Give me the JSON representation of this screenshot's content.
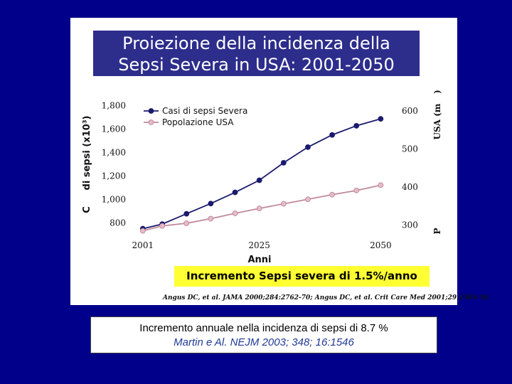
{
  "slide": {
    "title_line1": "Proiezione della incidenza della",
    "title_line2": "Sepsi Severa in USA: 2001-2050",
    "highlight": "Incremento Sepsi severa di 1.5%/anno",
    "citation": "Angus DC, et al. JAMA 2000;284:2762-70; Angus DC, et al. Crit Care Med 2001;29:1303-10.",
    "caption_line1": "Incremento annuale nella incidenza di sepsi di 8.7 %",
    "caption_line2": "Martin e Al. NEJM 2003; 348; 16:1546",
    "colors": {
      "background": "#00008b",
      "title_box": "#2d2d8c",
      "highlight": "#ffff33",
      "series_sepsi": "#1a1a6e",
      "series_pop": "#c08a9a"
    }
  },
  "chart_data": {
    "type": "line",
    "xlabel": "Anni",
    "ylabel_left": "di sepsi (x10³)",
    "ylabel_left_fragment": "C",
    "ylabel_right": "USA (m",
    "ylabel_right_fragment": ")",
    "ylabel_right_bottom_fragment": "P",
    "x_ticks": [
      "2001",
      "2025",
      "2050"
    ],
    "y_left_ticks": [
      "800",
      "1,000",
      "1,200",
      "1,400",
      "1,600",
      "1,800"
    ],
    "y_right_ticks": [
      "300",
      "400",
      "500",
      "600"
    ],
    "ylim_left": [
      700,
      1850
    ],
    "ylim_right": [
      275,
      630
    ],
    "xlim": [
      2000,
      2052
    ],
    "legend_placement": "top-left",
    "x": [
      2001,
      2005,
      2010,
      2015,
      2020,
      2025,
      2030,
      2035,
      2040,
      2045,
      2050
    ],
    "series": [
      {
        "name": "Casi di sepsi Severa",
        "axis": "left",
        "values": [
          751,
          790,
          878,
          965,
          1060,
          1163,
          1312,
          1445,
          1549,
          1627,
          1686
        ]
      },
      {
        "name": "Popolazione USA",
        "axis": "right",
        "values": [
          285,
          298,
          305,
          317,
          331,
          344,
          356,
          368,
          380,
          391,
          405
        ]
      }
    ]
  }
}
